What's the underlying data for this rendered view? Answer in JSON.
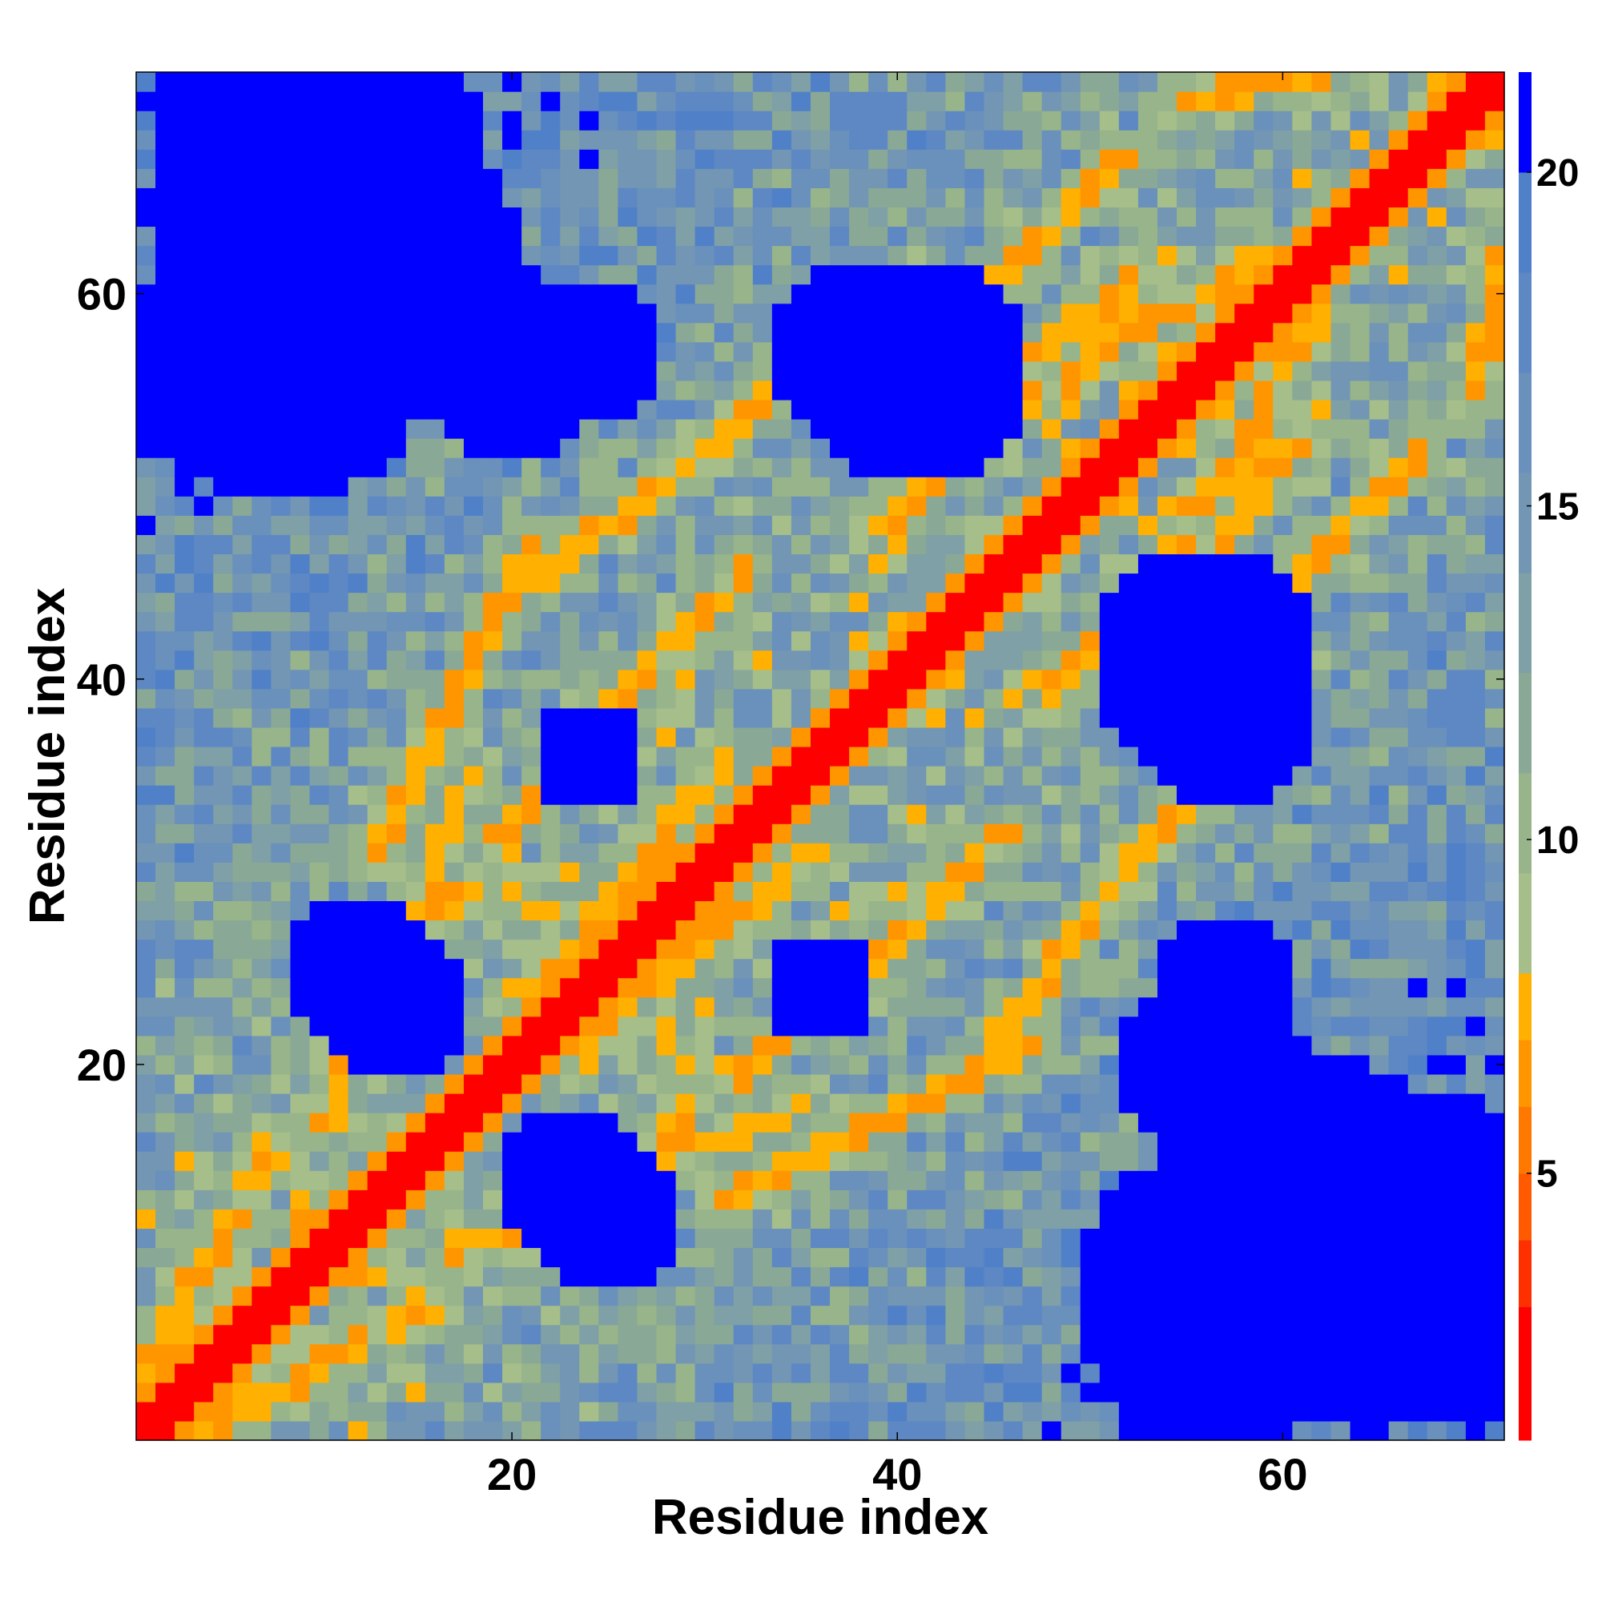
{
  "chart_data": {
    "type": "heatmap",
    "title": "",
    "xlabel": "Residue index",
    "ylabel": "Residue index",
    "n_residues": 71,
    "x_range": [
      1,
      71
    ],
    "y_range": [
      1,
      71
    ],
    "xticks": [
      20,
      40,
      60
    ],
    "yticks": [
      20,
      40,
      60
    ],
    "xtick_labels": [
      "20",
      "40",
      "60"
    ],
    "ytick_labels": [
      "20",
      "40",
      "60"
    ],
    "colorbar": {
      "range": [
        1,
        21.5
      ],
      "ticks": [
        5,
        10,
        15,
        20
      ],
      "tick_labels": [
        "5",
        "10",
        "15",
        "20"
      ],
      "bins": [
        {
          "max": 3,
          "color": "#ff0000"
        },
        {
          "max": 4,
          "color": "#ff3000"
        },
        {
          "max": 5,
          "color": "#ff5a00"
        },
        {
          "max": 6,
          "color": "#ff7800"
        },
        {
          "max": 7,
          "color": "#ff9600"
        },
        {
          "max": 8,
          "color": "#ffb000"
        },
        {
          "max": 9.5,
          "color": "#a6be8a"
        },
        {
          "max": 11,
          "color": "#98b48a"
        },
        {
          "max": 12.5,
          "color": "#8aa896"
        },
        {
          "max": 14,
          "color": "#7ea0a6"
        },
        {
          "max": 15.5,
          "color": "#7296b4"
        },
        {
          "max": 17,
          "color": "#6a90bc"
        },
        {
          "max": 18.5,
          "color": "#5d88c4"
        },
        {
          "max": 20,
          "color": "#5080c8"
        },
        {
          "max": 99,
          "color": "#0000ff"
        }
      ]
    },
    "contact_bands": [
      {
        "start": [
          1,
          4
        ],
        "end": [
          7,
          15
        ]
      },
      {
        "start": [
          10,
          17
        ],
        "end": [
          18,
          35
        ]
      },
      {
        "start": [
          11,
          21
        ],
        "end": [
          26,
          40
        ]
      },
      {
        "start": [
          13,
          31
        ],
        "end": [
          21,
          47
        ]
      },
      {
        "start": [
          21,
          23
        ],
        "end": [
          31,
          36
        ]
      },
      {
        "start": [
          27,
          40
        ],
        "end": [
          32,
          46
        ]
      },
      {
        "start": [
          21,
          45
        ],
        "end": [
          34,
          55
        ]
      },
      {
        "start": [
          39,
          48
        ],
        "end": [
          52,
          58
        ]
      },
      {
        "start": [
          42,
          53
        ],
        "end": [
          53,
          61
        ]
      },
      {
        "start": [
          44,
          60
        ],
        "end": [
          52,
          67
        ]
      },
      {
        "start": [
          50,
          57
        ],
        "end": [
          60,
          62
        ]
      },
      {
        "start": [
          55,
          70
        ],
        "end": [
          64,
          72
        ]
      }
    ],
    "far_regions": [
      {
        "center": [
          8,
          57
        ],
        "radius": 8
      },
      {
        "center": [
          16,
          62
        ],
        "radius": 5
      },
      {
        "center": [
          24,
          57
        ],
        "radius": 4
      },
      {
        "center": [
          38,
          57
        ],
        "radius": 5
      },
      {
        "center": [
          56,
          41
        ],
        "radius": 6
      },
      {
        "center": [
          66,
          10
        ],
        "radius": 9
      },
      {
        "center": [
          56,
          20
        ],
        "radius": 5
      },
      {
        "center": [
          23,
          14
        ],
        "radius": 4
      },
      {
        "center": [
          12,
          25
        ],
        "radius": 4
      },
      {
        "center": [
          36,
          24
        ],
        "radius": 3
      }
    ]
  }
}
